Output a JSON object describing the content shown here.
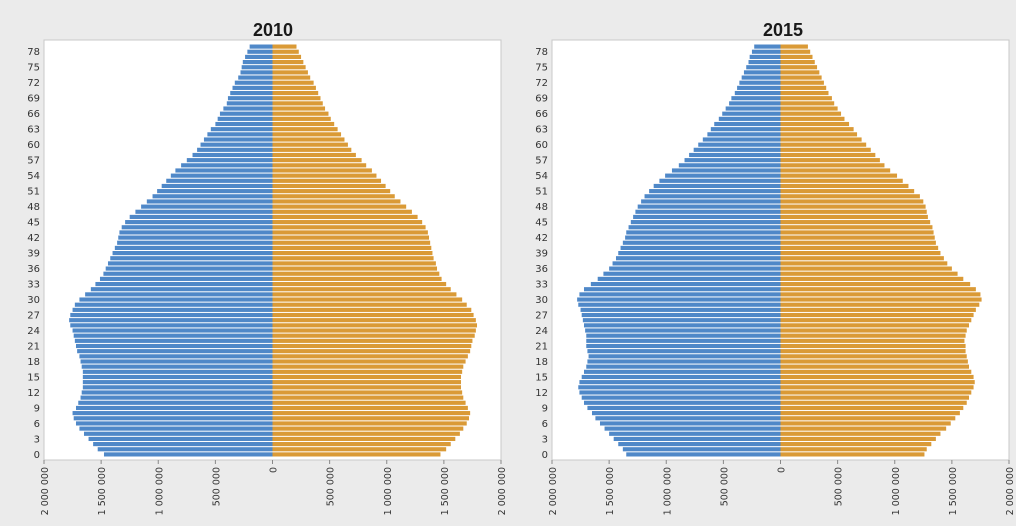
{
  "chart_data": [
    {
      "type": "bar",
      "orientation": "horizontal",
      "layout": "population-pyramid",
      "title": "2010",
      "xlabel": "",
      "ylabel": "",
      "age_range": [
        0,
        79
      ],
      "yticks": [
        "0",
        "3",
        "6",
        "9",
        "12",
        "15",
        "18",
        "21",
        "24",
        "27",
        "30",
        "33",
        "36",
        "39",
        "42",
        "45",
        "48",
        "51",
        "54",
        "57",
        "60",
        "63",
        "66",
        "69",
        "72",
        "75",
        "78"
      ],
      "xlim": [
        -2000000,
        2000000
      ],
      "xticks": [
        "2 000 000",
        "1 500 000",
        "1 000 000",
        "500 000",
        "0",
        "500 000",
        "1 000 000",
        "1 500 000",
        "2 000 000"
      ],
      "xtick_values": [
        -2000000,
        -1500000,
        -1000000,
        -500000,
        0,
        500000,
        1000000,
        1500000,
        2000000
      ],
      "grid": false,
      "legend": "none",
      "series": [
        {
          "color": "#4f88c8",
          "side": "left",
          "values": [
            1475000,
            1530000,
            1570000,
            1610000,
            1650000,
            1690000,
            1720000,
            1740000,
            1750000,
            1720000,
            1700000,
            1680000,
            1670000,
            1660000,
            1660000,
            1660000,
            1660000,
            1670000,
            1680000,
            1690000,
            1710000,
            1720000,
            1730000,
            1740000,
            1750000,
            1770000,
            1780000,
            1770000,
            1750000,
            1730000,
            1690000,
            1640000,
            1590000,
            1550000,
            1510000,
            1480000,
            1460000,
            1440000,
            1420000,
            1400000,
            1380000,
            1360000,
            1350000,
            1340000,
            1320000,
            1290000,
            1250000,
            1200000,
            1150000,
            1100000,
            1050000,
            1010000,
            970000,
            930000,
            890000,
            850000,
            800000,
            750000,
            700000,
            660000,
            630000,
            600000,
            570000,
            540000,
            500000,
            480000,
            460000,
            430000,
            400000,
            390000,
            370000,
            350000,
            330000,
            300000,
            280000,
            270000,
            260000,
            240000,
            220000,
            200000
          ]
        },
        {
          "color": "#da9a36",
          "side": "right",
          "values": [
            1470000,
            1520000,
            1560000,
            1600000,
            1640000,
            1670000,
            1700000,
            1720000,
            1730000,
            1710000,
            1690000,
            1670000,
            1660000,
            1650000,
            1650000,
            1650000,
            1660000,
            1670000,
            1690000,
            1710000,
            1730000,
            1740000,
            1750000,
            1770000,
            1780000,
            1790000,
            1780000,
            1760000,
            1740000,
            1700000,
            1660000,
            1610000,
            1560000,
            1520000,
            1480000,
            1460000,
            1440000,
            1430000,
            1410000,
            1400000,
            1390000,
            1380000,
            1370000,
            1360000,
            1340000,
            1310000,
            1270000,
            1220000,
            1170000,
            1120000,
            1070000,
            1030000,
            990000,
            950000,
            910000,
            870000,
            820000,
            780000,
            730000,
            690000,
            660000,
            630000,
            600000,
            570000,
            540000,
            510000,
            490000,
            460000,
            440000,
            420000,
            400000,
            380000,
            360000,
            330000,
            310000,
            290000,
            270000,
            250000,
            230000,
            210000
          ]
        }
      ]
    },
    {
      "type": "bar",
      "orientation": "horizontal",
      "layout": "population-pyramid",
      "title": "2015",
      "xlabel": "",
      "ylabel": "",
      "age_range": [
        0,
        79
      ],
      "yticks": [
        "0",
        "3",
        "6",
        "9",
        "12",
        "15",
        "18",
        "21",
        "24",
        "27",
        "30",
        "33",
        "36",
        "39",
        "42",
        "45",
        "48",
        "51",
        "54",
        "57",
        "60",
        "63",
        "66",
        "69",
        "72",
        "75",
        "78"
      ],
      "xlim": [
        -2000000,
        2000000
      ],
      "xticks": [
        "2 000 000",
        "1 500 000",
        "1 000 000",
        "500 000",
        "0",
        "500 000",
        "1 000 000",
        "1 500 000",
        "2 000 000"
      ],
      "xtick_values": [
        -2000000,
        -1500000,
        -1000000,
        -500000,
        0,
        500000,
        1000000,
        1500000,
        2000000
      ],
      "grid": false,
      "legend": "none",
      "series": [
        {
          "color": "#4f88c8",
          "side": "left",
          "values": [
            1350000,
            1380000,
            1420000,
            1460000,
            1500000,
            1540000,
            1580000,
            1620000,
            1650000,
            1690000,
            1720000,
            1740000,
            1760000,
            1770000,
            1760000,
            1740000,
            1720000,
            1700000,
            1690000,
            1680000,
            1690000,
            1700000,
            1700000,
            1700000,
            1710000,
            1720000,
            1730000,
            1740000,
            1750000,
            1770000,
            1780000,
            1760000,
            1720000,
            1660000,
            1600000,
            1550000,
            1500000,
            1470000,
            1440000,
            1420000,
            1400000,
            1380000,
            1360000,
            1350000,
            1330000,
            1310000,
            1290000,
            1270000,
            1250000,
            1220000,
            1190000,
            1150000,
            1110000,
            1060000,
            1010000,
            950000,
            890000,
            840000,
            800000,
            760000,
            720000,
            680000,
            640000,
            610000,
            580000,
            540000,
            510000,
            480000,
            450000,
            430000,
            400000,
            380000,
            360000,
            340000,
            320000,
            300000,
            280000,
            270000,
            250000,
            230000
          ]
        },
        {
          "color": "#da9a36",
          "side": "right",
          "values": [
            1260000,
            1280000,
            1320000,
            1360000,
            1400000,
            1450000,
            1490000,
            1530000,
            1570000,
            1600000,
            1630000,
            1650000,
            1670000,
            1690000,
            1700000,
            1690000,
            1670000,
            1650000,
            1640000,
            1630000,
            1620000,
            1620000,
            1610000,
            1620000,
            1630000,
            1650000,
            1670000,
            1690000,
            1710000,
            1740000,
            1760000,
            1750000,
            1710000,
            1660000,
            1600000,
            1550000,
            1500000,
            1460000,
            1430000,
            1400000,
            1380000,
            1360000,
            1350000,
            1340000,
            1330000,
            1310000,
            1290000,
            1280000,
            1270000,
            1250000,
            1220000,
            1170000,
            1120000,
            1070000,
            1020000,
            960000,
            910000,
            870000,
            830000,
            790000,
            750000,
            710000,
            670000,
            640000,
            600000,
            560000,
            530000,
            500000,
            470000,
            450000,
            420000,
            400000,
            380000,
            360000,
            340000,
            320000,
            300000,
            280000,
            260000,
            240000
          ]
        }
      ]
    }
  ]
}
